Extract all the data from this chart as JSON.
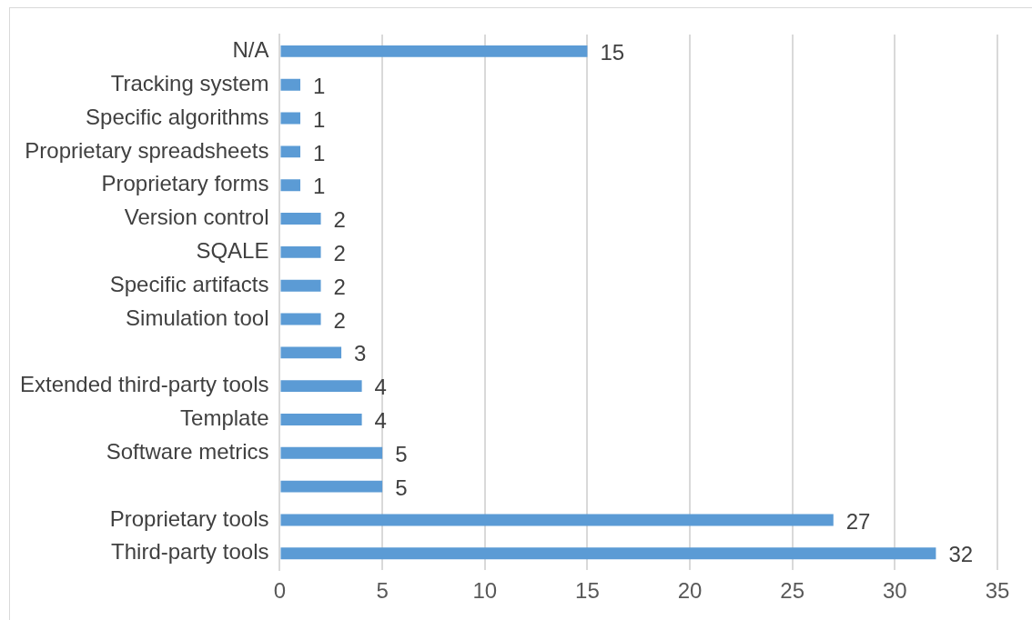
{
  "chart_data": {
    "type": "bar",
    "orientation": "horizontal",
    "categories": [
      "N/A",
      "Tracking system",
      "Specific algorithms",
      "Proprietary spreadsheets",
      "Proprietary forms",
      "Version control",
      "SQALE",
      "Specific artifacts",
      "Simulation tool",
      null,
      "Extended third-party tools",
      "Template",
      "Software metrics",
      null,
      "Proprietary tools",
      "Third-party tools"
    ],
    "values": [
      15,
      1,
      1,
      1,
      1,
      2,
      2,
      2,
      2,
      3,
      4,
      4,
      5,
      5,
      27,
      32
    ],
    "color": "#5b9bd5",
    "xlim": [
      0,
      35
    ],
    "xticks": [
      0,
      5,
      10,
      15,
      20,
      25,
      30,
      35
    ],
    "grid": "x",
    "legend": false,
    "data_labels": true
  }
}
